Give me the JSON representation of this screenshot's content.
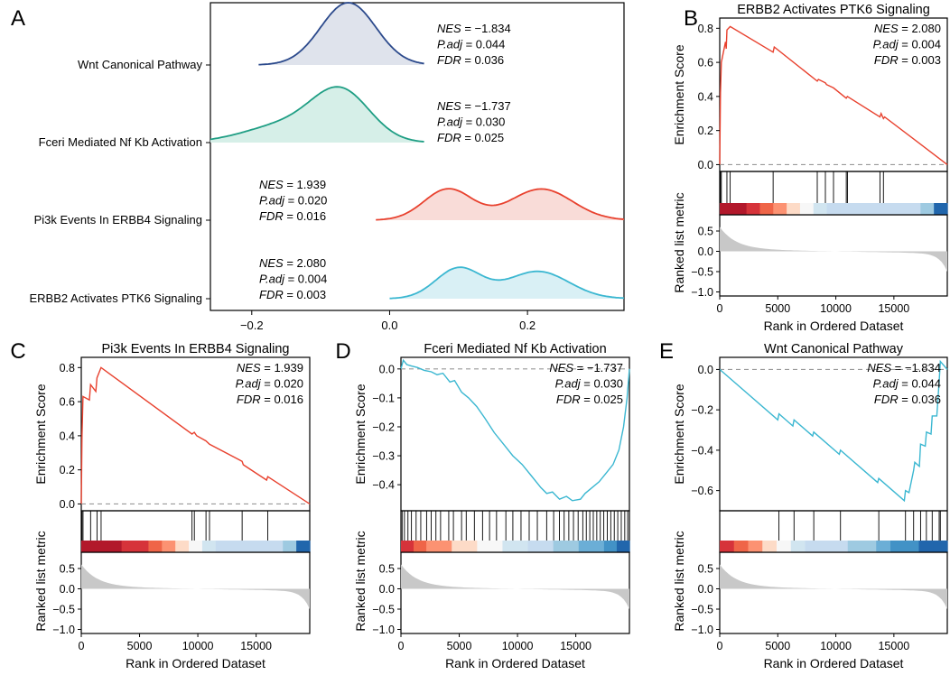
{
  "figure": {
    "panel_letters": [
      "A",
      "B",
      "C",
      "D",
      "E"
    ],
    "colors": {
      "positive_line": "#e8412e",
      "negative_line": "#3bb7d1",
      "rug": "#000000",
      "metric_fill": "#c8c8c8",
      "zero_line": "#999999"
    }
  },
  "chart_data": [
    {
      "panel": "A",
      "type": "ridgeline",
      "xlim": [
        -0.26,
        0.34
      ],
      "xticks": [
        -0.2,
        0.0,
        0.2
      ],
      "xtick_labels": [
        "−0.2",
        "0.0",
        "0.2"
      ],
      "series": [
        {
          "name": "Wnt Canonical Pathway",
          "color": "#2c4a8c",
          "fill": "#dfe3ec",
          "stats": {
            "NES": "−1.834",
            "P.adj": "0.044",
            "FDR": "0.036"
          },
          "stats_side": "right",
          "range": [
            -0.19,
            0.05
          ],
          "peaks": [
            {
              "mu": -0.06,
              "sd": 0.04,
              "h": 1.0
            }
          ]
        },
        {
          "name": "Fceri Mediated Nf Kb Activation",
          "color": "#1f9e84",
          "fill": "#d6efe8",
          "stats": {
            "NES": "−1.737",
            "P.adj": "0.030",
            "FDR": "0.025"
          },
          "stats_side": "right",
          "range": [
            -0.26,
            0.05
          ],
          "peaks": [
            {
              "mu": -0.07,
              "sd": 0.042,
              "h": 0.95
            },
            {
              "mu": -0.15,
              "sd": 0.06,
              "h": 0.35
            }
          ]
        },
        {
          "name": "Pi3k Events In ERBB4 Signaling",
          "color": "#e8412e",
          "fill": "#f9dcd8",
          "stats": {
            "NES": "1.939",
            "P.adj": "0.020",
            "FDR": "0.016"
          },
          "stats_side": "left",
          "range": [
            -0.02,
            0.34
          ],
          "peaks": [
            {
              "mu": 0.085,
              "sd": 0.035,
              "h": 0.72
            },
            {
              "mu": 0.22,
              "sd": 0.045,
              "h": 0.72
            }
          ]
        },
        {
          "name": "ERBB2 Activates PTK6 Signaling",
          "color": "#3bb7d1",
          "fill": "#d9f0f5",
          "stats": {
            "NES": "2.080",
            "P.adj": "0.004",
            "FDR": "0.003"
          },
          "stats_side": "left",
          "range": [
            0.0,
            0.34
          ],
          "peaks": [
            {
              "mu": 0.1,
              "sd": 0.033,
              "h": 0.8
            },
            {
              "mu": 0.215,
              "sd": 0.045,
              "h": 0.72
            }
          ]
        }
      ]
    },
    {
      "panel": "B",
      "type": "gsea",
      "title": "ERBB2 Activates PTK6 Signaling",
      "color": "#e8412e",
      "stats": {
        "NES": "2.080",
        "P.adj": "0.004",
        "FDR": "0.003"
      },
      "ylabel": "Enrichment Score",
      "ylim": [
        -0.04,
        0.86
      ],
      "yticks": [
        0.0,
        0.2,
        0.4,
        0.6,
        0.8
      ],
      "ytick_labels": [
        "0.0",
        "0.2",
        "0.4",
        "0.6",
        "0.8"
      ],
      "xlim": [
        0,
        19600
      ],
      "es_curve": [
        [
          0,
          0
        ],
        [
          60,
          0.42
        ],
        [
          140,
          0.6
        ],
        [
          500,
          0.72
        ],
        [
          560,
          0.68
        ],
        [
          620,
          0.79
        ],
        [
          900,
          0.81
        ],
        [
          4600,
          0.66
        ],
        [
          4700,
          0.69
        ],
        [
          8400,
          0.49
        ],
        [
          8500,
          0.5
        ],
        [
          9100,
          0.48
        ],
        [
          9200,
          0.47
        ],
        [
          9800,
          0.45
        ],
        [
          10900,
          0.39
        ],
        [
          11000,
          0.4
        ],
        [
          13800,
          0.28
        ],
        [
          13900,
          0.3
        ],
        [
          14100,
          0.27
        ],
        [
          14200,
          0.28
        ],
        [
          19600,
          0.0
        ]
      ],
      "hits": [
        60,
        140,
        620,
        900,
        4600,
        8400,
        9100,
        9800,
        10900,
        11000,
        13800,
        14100
      ],
      "heat_bands": [
        "#b2182b",
        "#b2182b",
        "#d6333a",
        "#ef6548",
        "#fc9272",
        "#fddbc7",
        "#f7f7f7",
        "#d1e5f0",
        "#c6dbef",
        "#c6dbef",
        "#c6dbef",
        "#c6dbef",
        "#c6dbef",
        "#c6dbef",
        "#c6dbef",
        "#9ecae1",
        "#2166ac"
      ],
      "metric_ylabel": "Ranked list metric",
      "metric_ylim": [
        -1.1,
        0.9
      ],
      "metric_yticks": [
        0.5,
        0.0,
        -0.5,
        -1.0
      ],
      "metric_ytick_labels": [
        "0.5",
        "0.0",
        "−0.5",
        "−1.0"
      ],
      "xticks": [
        0,
        5000,
        10000,
        15000
      ],
      "xtick_labels": [
        "0",
        "5000",
        "10000",
        "15000"
      ],
      "xlabel": "Rank in Ordered Dataset"
    },
    {
      "panel": "C",
      "type": "gsea",
      "title": "Pi3k Events In ERBB4 Signaling",
      "color": "#e8412e",
      "stats": {
        "NES": "1.939",
        "P.adj": "0.020",
        "FDR": "0.016"
      },
      "ylabel": "Enrichment Score",
      "ylim": [
        -0.04,
        0.86
      ],
      "yticks": [
        0.0,
        0.2,
        0.4,
        0.6,
        0.8
      ],
      "ytick_labels": [
        "0.0",
        "0.2",
        "0.4",
        "0.6",
        "0.8"
      ],
      "xlim": [
        0,
        19600
      ],
      "es_curve": [
        [
          0,
          0
        ],
        [
          60,
          0.4
        ],
        [
          150,
          0.63
        ],
        [
          700,
          0.61
        ],
        [
          800,
          0.7
        ],
        [
          1250,
          0.66
        ],
        [
          1350,
          0.74
        ],
        [
          1700,
          0.8
        ],
        [
          9500,
          0.41
        ],
        [
          9700,
          0.42
        ],
        [
          9900,
          0.4
        ],
        [
          10700,
          0.37
        ],
        [
          11000,
          0.35
        ],
        [
          13800,
          0.25
        ],
        [
          13900,
          0.23
        ],
        [
          15900,
          0.14
        ],
        [
          16000,
          0.16
        ],
        [
          19600,
          0.0
        ]
      ],
      "hits": [
        60,
        150,
        800,
        1350,
        1700,
        9500,
        9700,
        10700,
        11000,
        13800,
        16000
      ],
      "heat_bands": [
        "#b2182b",
        "#b2182b",
        "#b2182b",
        "#d6333a",
        "#d6333a",
        "#ef6548",
        "#fc9272",
        "#fddbc7",
        "#f7f7f7",
        "#d1e5f0",
        "#c6dbef",
        "#c6dbef",
        "#c6dbef",
        "#c6dbef",
        "#c6dbef",
        "#9ecae1",
        "#2166ac"
      ],
      "metric_ylabel": "Ranked list metric",
      "metric_ylim": [
        -1.1,
        0.9
      ],
      "metric_yticks": [
        0.5,
        0.0,
        -0.5,
        -1.0
      ],
      "metric_ytick_labels": [
        "0.5",
        "0.0",
        "−0.5",
        "−1.0"
      ],
      "xticks": [
        0,
        5000,
        10000,
        15000
      ],
      "xtick_labels": [
        "0",
        "5000",
        "10000",
        "15000"
      ],
      "xlabel": "Rank in Ordered Dataset"
    },
    {
      "panel": "D",
      "type": "gsea",
      "title": "Fceri Mediated Nf Kb Activation",
      "color": "#3bb7d1",
      "stats": {
        "NES": "−1.737",
        "P.adj": "0.030",
        "FDR": "0.025"
      },
      "ylabel": "Enrichment Score",
      "ylim": [
        -0.49,
        0.04
      ],
      "yticks": [
        0.0,
        -0.1,
        -0.2,
        -0.3,
        -0.4
      ],
      "ytick_labels": [
        "0.0",
        "−0.1",
        "−0.2",
        "−0.3",
        "−0.4"
      ],
      "xlim": [
        0,
        19600
      ],
      "es_curve": [
        [
          0,
          0
        ],
        [
          200,
          0.03
        ],
        [
          500,
          0.015
        ],
        [
          900,
          0.01
        ],
        [
          1400,
          0.005
        ],
        [
          2000,
          -0.005
        ],
        [
          2600,
          -0.01
        ],
        [
          3100,
          -0.02
        ],
        [
          3600,
          -0.015
        ],
        [
          4200,
          -0.045
        ],
        [
          4600,
          -0.04
        ],
        [
          5200,
          -0.08
        ],
        [
          5800,
          -0.1
        ],
        [
          6500,
          -0.13
        ],
        [
          7200,
          -0.17
        ],
        [
          8000,
          -0.22
        ],
        [
          8800,
          -0.26
        ],
        [
          9600,
          -0.3
        ],
        [
          10400,
          -0.33
        ],
        [
          11200,
          -0.37
        ],
        [
          12000,
          -0.41
        ],
        [
          12500,
          -0.43
        ],
        [
          13000,
          -0.425
        ],
        [
          13600,
          -0.45
        ],
        [
          14200,
          -0.44
        ],
        [
          14700,
          -0.455
        ],
        [
          15400,
          -0.45
        ],
        [
          15800,
          -0.43
        ],
        [
          16400,
          -0.41
        ],
        [
          17000,
          -0.39
        ],
        [
          17600,
          -0.36
        ],
        [
          18200,
          -0.33
        ],
        [
          18700,
          -0.28
        ],
        [
          19100,
          -0.2
        ],
        [
          19400,
          -0.1
        ],
        [
          19600,
          0.0
        ]
      ],
      "hits": [
        100,
        300,
        600,
        900,
        1300,
        1700,
        2200,
        2600,
        3000,
        3400,
        4100,
        4500,
        5200,
        5600,
        6300,
        7000,
        7600,
        8200,
        9000,
        9600,
        10300,
        11000,
        11700,
        12500,
        13100,
        13600,
        14000,
        14400,
        14800,
        15200,
        15600,
        15900,
        16200,
        16500,
        16800,
        17100,
        17400,
        17700,
        18000,
        18300,
        18600,
        18900,
        19200,
        19450
      ],
      "heat_bands": [
        "#d6333a",
        "#ef6548",
        "#fc9272",
        "#fc9272",
        "#fddbc7",
        "#fddbc7",
        "#f7f7f7",
        "#f7f7f7",
        "#d1e5f0",
        "#d1e5f0",
        "#c6dbef",
        "#c6dbef",
        "#9ecae1",
        "#9ecae1",
        "#6baed6",
        "#6baed6",
        "#4292c6",
        "#2166ac"
      ],
      "metric_ylabel": "Ranked list metric",
      "metric_ylim": [
        -1.1,
        0.9
      ],
      "metric_yticks": [
        0.5,
        0.0,
        -0.5,
        -1.0
      ],
      "metric_ytick_labels": [
        "0.5",
        "0.0",
        "−0.5",
        "−1.0"
      ],
      "xticks": [
        0,
        5000,
        10000,
        15000
      ],
      "xtick_labels": [
        "0",
        "5000",
        "10000",
        "15000"
      ],
      "xlabel": "Rank in Ordered Dataset"
    },
    {
      "panel": "E",
      "type": "gsea",
      "title": "Wnt Canonical Pathway",
      "color": "#3bb7d1",
      "stats": {
        "NES": "−1.834",
        "P.adj": "0.044",
        "FDR": "0.036"
      },
      "ylabel": "Enrichment Score",
      "ylim": [
        -0.7,
        0.06
      ],
      "yticks": [
        0.0,
        -0.2,
        -0.4,
        -0.6
      ],
      "ytick_labels": [
        "0.0",
        "−0.2",
        "−0.4",
        "−0.6"
      ],
      "xlim": [
        0,
        19600
      ],
      "es_curve": [
        [
          0,
          0
        ],
        [
          5000,
          -0.25
        ],
        [
          5100,
          -0.22
        ],
        [
          6300,
          -0.28
        ],
        [
          6400,
          -0.25
        ],
        [
          8000,
          -0.33
        ],
        [
          8100,
          -0.31
        ],
        [
          10300,
          -0.42
        ],
        [
          10400,
          -0.4
        ],
        [
          13600,
          -0.56
        ],
        [
          13700,
          -0.54
        ],
        [
          15900,
          -0.65
        ],
        [
          16000,
          -0.6
        ],
        [
          16300,
          -0.61
        ],
        [
          16700,
          -0.5
        ],
        [
          16800,
          -0.46
        ],
        [
          17200,
          -0.48
        ],
        [
          17300,
          -0.37
        ],
        [
          17700,
          -0.38
        ],
        [
          17800,
          -0.31
        ],
        [
          18200,
          -0.32
        ],
        [
          18300,
          -0.23
        ],
        [
          18700,
          -0.23
        ],
        [
          18900,
          -0.06
        ],
        [
          19000,
          0.04
        ],
        [
          19600,
          0.0
        ]
      ],
      "hits": [
        5100,
        6400,
        8100,
        10400,
        13700,
        16000,
        16700,
        17300,
        17800,
        18300,
        18900,
        19000
      ],
      "heat_bands": [
        "#d6333a",
        "#ef6548",
        "#fc9272",
        "#fddbc7",
        "#f7f7f7",
        "#d1e5f0",
        "#c6dbef",
        "#c6dbef",
        "#c6dbef",
        "#9ecae1",
        "#9ecae1",
        "#6baed6",
        "#4292c6",
        "#4292c6",
        "#2166ac",
        "#2166ac"
      ],
      "metric_ylabel": "Ranked list metric",
      "metric_ylim": [
        -1.1,
        0.9
      ],
      "metric_yticks": [
        0.5,
        0.0,
        -0.5,
        -1.0
      ],
      "metric_ytick_labels": [
        "0.5",
        "0.0",
        "−0.5",
        "−1.0"
      ],
      "xticks": [
        0,
        5000,
        10000,
        15000
      ],
      "xtick_labels": [
        "0",
        "5000",
        "10000",
        "15000"
      ],
      "xlabel": "Rank in Ordered Dataset"
    }
  ]
}
